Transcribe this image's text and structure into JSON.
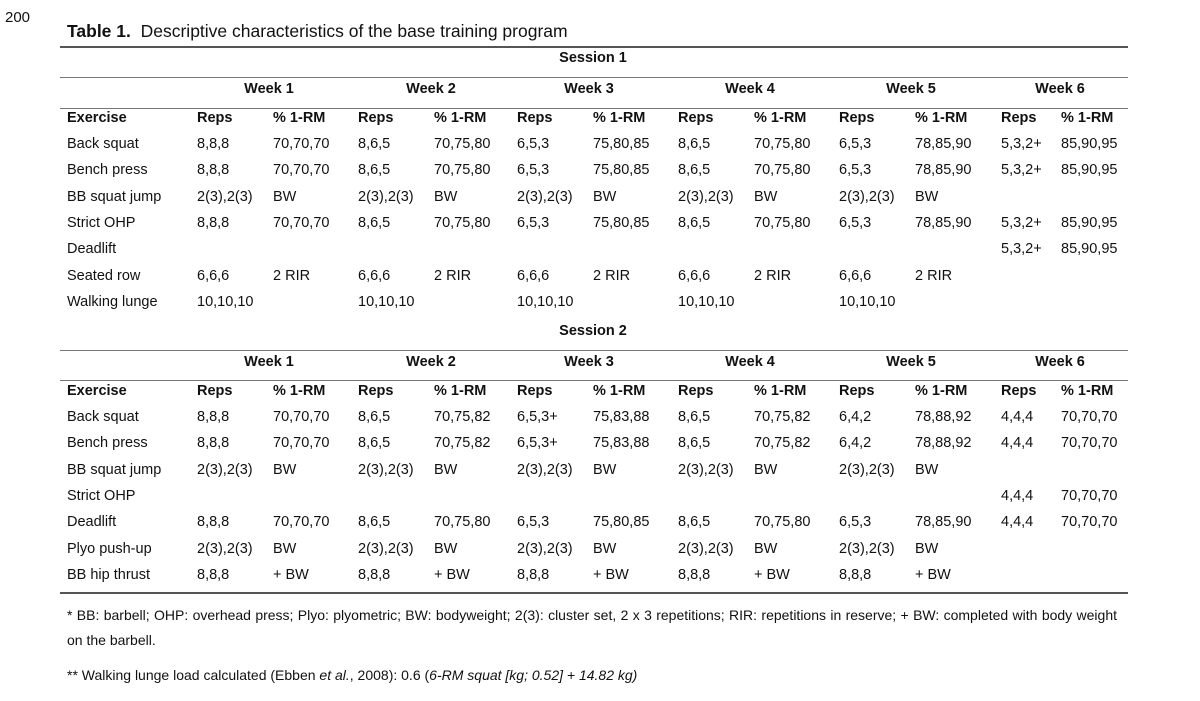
{
  "page_number": "200",
  "title": {
    "label": "Table 1.",
    "text": "Descriptive characteristics of the base training program"
  },
  "sessions": [
    {
      "title": "Session 1",
      "weeks": [
        "Week 1",
        "Week 2",
        "Week 3",
        "Week 4",
        "Week 5",
        "Week 6"
      ],
      "header": [
        "Exercise",
        "Reps",
        "% 1-RM",
        "Reps",
        "% 1-RM",
        "Reps",
        "% 1-RM",
        "Reps",
        "% 1-RM",
        "Reps",
        "% 1-RM",
        "Reps",
        "% 1-RM"
      ],
      "rows": [
        [
          "Back squat",
          "8,8,8",
          "70,70,70",
          "8,6,5",
          "70,75,80",
          "6,5,3",
          "75,80,85",
          "8,6,5",
          "70,75,80",
          "6,5,3",
          "78,85,90",
          "5,3,2+",
          "85,90,95"
        ],
        [
          "Bench press",
          "8,8,8",
          "70,70,70",
          "8,6,5",
          "70,75,80",
          "6,5,3",
          "75,80,85",
          "8,6,5",
          "70,75,80",
          "6,5,3",
          "78,85,90",
          "5,3,2+",
          "85,90,95"
        ],
        [
          "BB squat jump",
          "2(3),2(3)",
          "BW",
          "2(3),2(3)",
          "BW",
          "2(3),2(3)",
          "BW",
          "2(3),2(3)",
          "BW",
          "2(3),2(3)",
          "BW",
          null,
          null
        ],
        [
          "Strict OHP",
          "8,8,8",
          "70,70,70",
          "8,6,5",
          "70,75,80",
          "6,5,3",
          "75,80,85",
          "8,6,5",
          "70,75,80",
          "6,5,3",
          "78,85,90",
          "5,3,2+",
          "85,90,95"
        ],
        [
          "Deadlift",
          null,
          null,
          null,
          null,
          null,
          null,
          null,
          null,
          null,
          null,
          "5,3,2+",
          "85,90,95"
        ],
        [
          "Seated row",
          "6,6,6",
          "2 RIR",
          "6,6,6",
          "2 RIR",
          "6,6,6",
          "2 RIR",
          "6,6,6",
          "2 RIR",
          "6,6,6",
          "2 RIR",
          null,
          null
        ],
        [
          "Walking lunge",
          "10,10,10",
          null,
          "10,10,10",
          null,
          "10,10,10",
          null,
          "10,10,10",
          null,
          "10,10,10",
          null,
          null,
          null
        ]
      ]
    },
    {
      "title": "Session 2",
      "weeks": [
        "Week 1",
        "Week 2",
        "Week 3",
        "Week 4",
        "Week 5",
        "Week 6"
      ],
      "header": [
        "Exercise",
        "Reps",
        "% 1-RM",
        "Reps",
        "% 1-RM",
        "Reps",
        "% 1-RM",
        "Reps",
        "% 1-RM",
        "Reps",
        "% 1-RM",
        "Reps",
        "% 1-RM"
      ],
      "rows": [
        [
          "Back squat",
          "8,8,8",
          "70,70,70",
          "8,6,5",
          "70,75,82",
          "6,5,3+",
          "75,83,88",
          "8,6,5",
          "70,75,82",
          "6,4,2",
          "78,88,92",
          "4,4,4",
          "70,70,70"
        ],
        [
          "Bench press",
          "8,8,8",
          "70,70,70",
          "8,6,5",
          "70,75,82",
          "6,5,3+",
          "75,83,88",
          "8,6,5",
          "70,75,82",
          "6,4,2",
          "78,88,92",
          "4,4,4",
          "70,70,70"
        ],
        [
          "BB squat jump",
          "2(3),2(3)",
          "BW",
          "2(3),2(3)",
          "BW",
          "2(3),2(3)",
          "BW",
          "2(3),2(3)",
          "BW",
          "2(3),2(3)",
          "BW",
          null,
          null
        ],
        [
          "Strict OHP",
          null,
          null,
          null,
          null,
          null,
          null,
          null,
          null,
          null,
          null,
          "4,4,4",
          "70,70,70"
        ],
        [
          "Deadlift",
          "8,8,8",
          "70,70,70",
          "8,6,5",
          "70,75,80",
          "6,5,3",
          "75,80,85",
          "8,6,5",
          "70,75,80",
          "6,5,3",
          "78,85,90",
          "4,4,4",
          "70,70,70"
        ],
        [
          "Plyo push-up",
          "2(3),2(3)",
          "BW",
          "2(3),2(3)",
          "BW",
          "2(3),2(3)",
          "BW",
          "2(3),2(3)",
          "BW",
          "2(3),2(3)",
          "BW",
          null,
          null
        ],
        [
          "BB hip thrust",
          "8,8,8",
          "+ BW",
          "8,8,8",
          "+ BW",
          "8,8,8",
          "+ BW",
          "8,8,8",
          "+ BW",
          "8,8,8",
          "+ BW",
          null,
          null
        ]
      ]
    }
  ],
  "footnotes": [
    [
      {
        "text": "* BB: barbell; OHP: overhead press; Plyo: plyometric; BW: bodyweight; 2(3): cluster set, 2 x 3 repetitions; RIR: repetitions in reserve; + BW: completed with body weight on the barbell."
      }
    ],
    [
      {
        "text": "** Walking lunge load calculated (Ebben "
      },
      {
        "text": "et al.",
        "italic": true
      },
      {
        "text": ", 2008): 0.6 ("
      },
      {
        "text": "6-RM squat [kg; 0.52] + 14.82 kg)",
        "italic": true
      }
    ]
  ]
}
